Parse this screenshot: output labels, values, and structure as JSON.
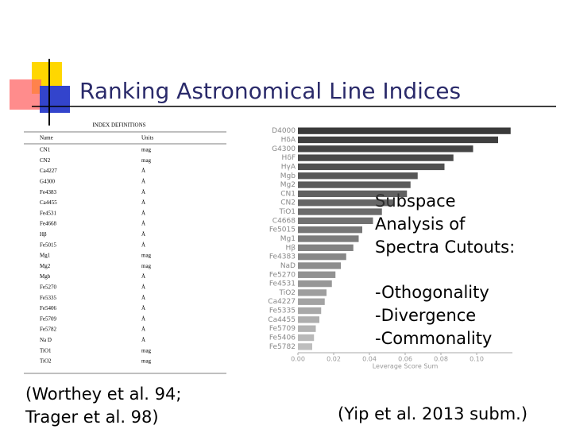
{
  "slide": {
    "title": "Ranking Astronomical Line Indices",
    "side_text": "Subspace Analysis of Spectra Cutouts:",
    "bullets": [
      "-Othogonality",
      "-Divergence",
      "-Commonality"
    ],
    "caption_left": [
      "(Worthey et al. 94;",
      "Trager et al. 98)"
    ],
    "caption_right": "(Yip et al. 2013 subm.)"
  },
  "table": {
    "title": "INDEX DEFINITIONS",
    "headers": [
      "Name",
      "Units"
    ],
    "rows": [
      [
        "CN1",
        "mag"
      ],
      [
        "CN2",
        "mag"
      ],
      [
        "Ca4227",
        "Å"
      ],
      [
        "G4300",
        "Å"
      ],
      [
        "Fe4383",
        "Å"
      ],
      [
        "Ca4455",
        "Å"
      ],
      [
        "Fe4531",
        "Å"
      ],
      [
        "Fe4668",
        "Å"
      ],
      [
        "Hβ",
        "Å"
      ],
      [
        "Fe5015",
        "Å"
      ],
      [
        "Mg1",
        "mag"
      ],
      [
        "Mg2",
        "mag"
      ],
      [
        "Mgb",
        "Å"
      ],
      [
        "Fe5270",
        "Å"
      ],
      [
        "Fe5335",
        "Å"
      ],
      [
        "Fe5406",
        "Å"
      ],
      [
        "Fe5709",
        "Å"
      ],
      [
        "Fe5782",
        "Å"
      ],
      [
        "Na D",
        "Å"
      ],
      [
        "TiO1",
        "mag"
      ],
      [
        "TiO2",
        "mag"
      ]
    ]
  },
  "chart_data": {
    "type": "barh",
    "xlabel": "Leverage Score Sum",
    "categories": [
      "D4000",
      "HδA",
      "G4300",
      "HδF",
      "HγA",
      "Mgb",
      "Mg2",
      "CN1",
      "CN2",
      "TiO1",
      "C4668",
      "Fe5015",
      "Mg1",
      "Hβ",
      "Fe4383",
      "NaD",
      "Fe5270",
      "Fe4531",
      "TiO2",
      "Ca4227",
      "Fe5335",
      "Ca4455",
      "Fe5709",
      "Fe5406",
      "Fe5782"
    ],
    "values": [
      0.119,
      0.112,
      0.098,
      0.087,
      0.082,
      0.067,
      0.063,
      0.061,
      0.054,
      0.047,
      0.042,
      0.036,
      0.034,
      0.031,
      0.027,
      0.024,
      0.021,
      0.019,
      0.016,
      0.015,
      0.013,
      0.012,
      0.01,
      0.009,
      0.008
    ],
    "color": "#3a3a3a",
    "xlim": [
      0,
      0.12
    ],
    "xticks": [
      {
        "value": 0,
        "label": "0.00"
      },
      {
        "value": 0.02,
        "label": "0.02"
      },
      {
        "value": 0.04,
        "label": "0.04"
      },
      {
        "value": 0.06,
        "label": "0.06"
      },
      {
        "value": 0.08,
        "label": "0.08"
      },
      {
        "value": 0.1,
        "label": "0.10"
      }
    ]
  }
}
